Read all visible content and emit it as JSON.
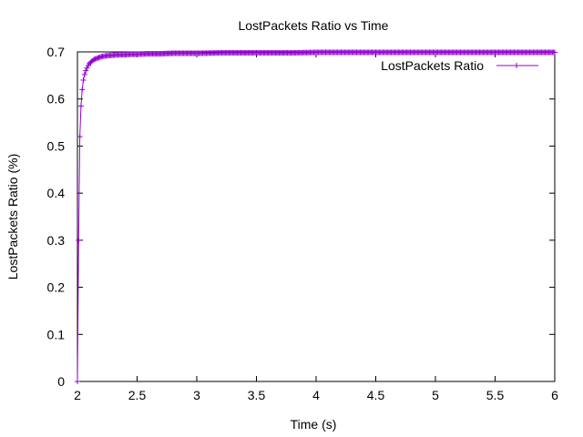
{
  "chart_data": {
    "type": "line",
    "title": "LostPackets Ratio vs Time",
    "xlabel": "Time (s)",
    "ylabel": "LostPackets Ratio (%)",
    "xlim": [
      2,
      6
    ],
    "ylim": [
      0,
      0.7
    ],
    "x_ticks": [
      "2",
      "2.5",
      "3",
      "3.5",
      "4",
      "4.5",
      "5",
      "5.5",
      "6"
    ],
    "y_ticks": [
      "0",
      "0.1",
      "0.2",
      "0.3",
      "0.4",
      "0.5",
      "0.6",
      "0.7"
    ],
    "grid": false,
    "legend_position": "top-right",
    "marker": "plus",
    "colors": {
      "series": "#9400d3",
      "axes": "#000000"
    },
    "series": [
      {
        "name": "LostPackets Ratio",
        "x": [
          2.0,
          2.01,
          2.02,
          2.03,
          2.04,
          2.05,
          2.06,
          2.07,
          2.08,
          2.09,
          2.1,
          2.12,
          2.14,
          2.16,
          2.18,
          2.2,
          2.25,
          2.3,
          2.35,
          2.4,
          2.45,
          2.5,
          2.6,
          2.7,
          2.8,
          2.9,
          3.0,
          3.2,
          3.4,
          3.6,
          3.8,
          4.0,
          4.5,
          5.0,
          5.5,
          6.0
        ],
        "y": [
          0.0,
          0.3,
          0.52,
          0.585,
          0.62,
          0.64,
          0.652,
          0.66,
          0.666,
          0.671,
          0.675,
          0.68,
          0.684,
          0.686,
          0.688,
          0.69,
          0.692,
          0.693,
          0.694,
          0.694,
          0.695,
          0.695,
          0.696,
          0.696,
          0.697,
          0.697,
          0.697,
          0.698,
          0.698,
          0.698,
          0.698,
          0.699,
          0.699,
          0.699,
          0.699,
          0.699
        ]
      }
    ]
  }
}
